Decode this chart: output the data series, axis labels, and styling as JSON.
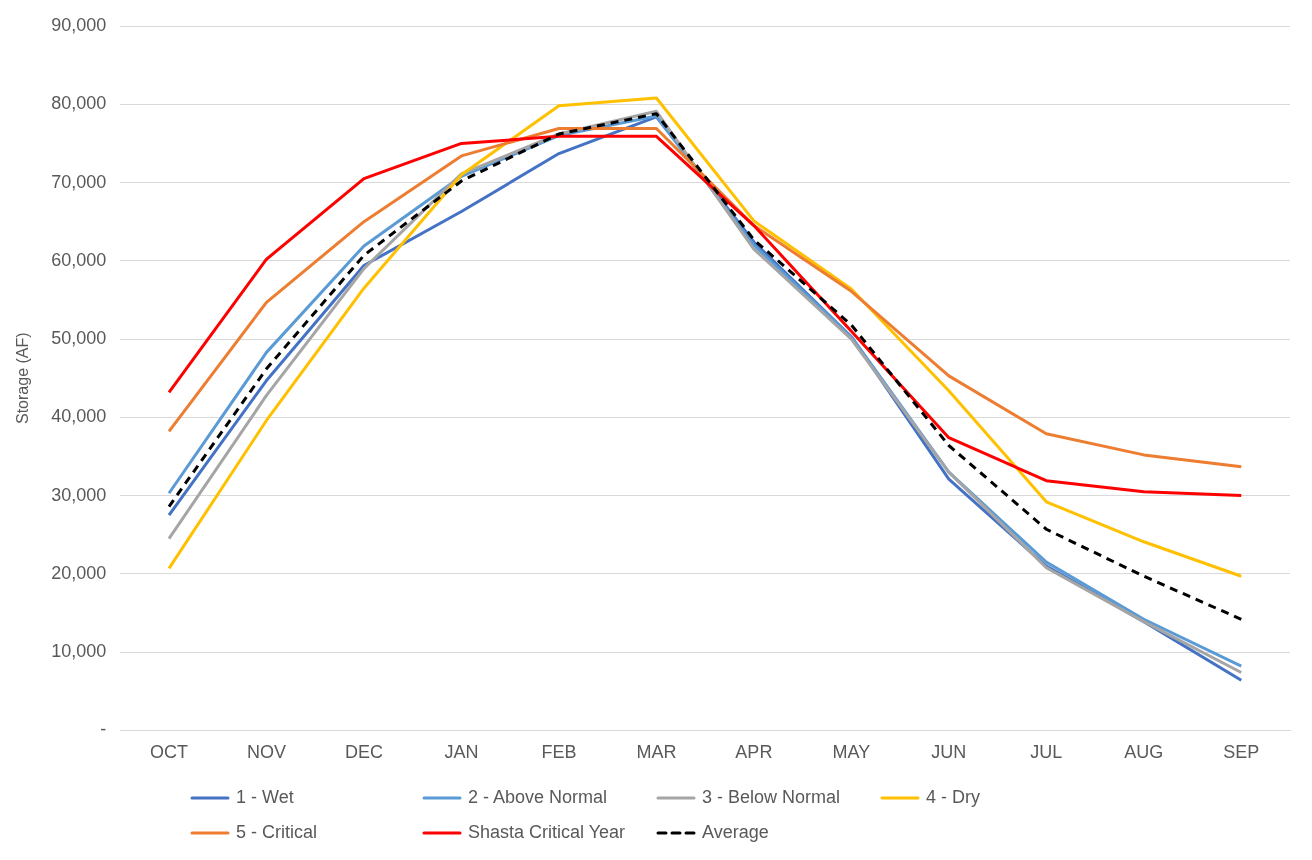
{
  "chart_data": {
    "type": "line",
    "ylabel": "Storage (AF)",
    "categories": [
      "OCT",
      "NOV",
      "DEC",
      "JAN",
      "FEB",
      "MAR",
      "APR",
      "MAY",
      "JUN",
      "JUL",
      "AUG",
      "SEP"
    ],
    "series": [
      {
        "name": "1 - Wet",
        "color": "#4472c4",
        "values": [
          27500,
          44700,
          59400,
          66300,
          73700,
          78400,
          62400,
          50300,
          32100,
          21000,
          13900,
          6400
        ]
      },
      {
        "name": "2 - Above Normal",
        "color": "#5b9bd5",
        "values": [
          30300,
          48300,
          61900,
          70800,
          76000,
          78500,
          62000,
          50300,
          33000,
          21500,
          14200,
          8200
        ]
      },
      {
        "name": "3 - Below Normal",
        "color": "#a5a5a5",
        "values": [
          24500,
          42800,
          59000,
          71100,
          76200,
          79100,
          61500,
          50000,
          33000,
          20800,
          13900,
          7400
        ]
      },
      {
        "name": "4 - Dry",
        "color": "#ffc000",
        "values": [
          20700,
          39600,
          56500,
          71000,
          79800,
          80800,
          65100,
          56400,
          43400,
          29200,
          24100,
          19700
        ]
      },
      {
        "name": "5 - Critical",
        "color": "#ed7d31",
        "values": [
          38200,
          54700,
          65000,
          73400,
          76900,
          76900,
          64500,
          56100,
          45300,
          37900,
          35200,
          33700
        ]
      },
      {
        "name": "Shasta Critical Year",
        "color": "#ff0000",
        "values": [
          43200,
          60200,
          70500,
          75000,
          75900,
          75900,
          64500,
          51000,
          37400,
          31900,
          30500,
          30000
        ]
      },
      {
        "name": "Average",
        "color": "#000000",
        "line_style": "dashed",
        "values": [
          28600,
          46200,
          60700,
          70200,
          76200,
          78800,
          62700,
          51800,
          36400,
          25700,
          19700,
          14200
        ]
      }
    ],
    "ylim": [
      0,
      90000
    ],
    "yticks": [
      {
        "value": 0,
        "label": "-"
      },
      {
        "value": 10000,
        "label": "10,000"
      },
      {
        "value": 20000,
        "label": "20,000"
      },
      {
        "value": 30000,
        "label": "30,000"
      },
      {
        "value": 40000,
        "label": "40,000"
      },
      {
        "value": 50000,
        "label": "50,000"
      },
      {
        "value": 60000,
        "label": "60,000"
      },
      {
        "value": 70000,
        "label": "70,000"
      },
      {
        "value": 80000,
        "label": "80,000"
      },
      {
        "value": 90000,
        "label": "90,000"
      }
    ],
    "grid": "y",
    "legend": "bottom",
    "marker": "none",
    "line_style": "solid"
  }
}
